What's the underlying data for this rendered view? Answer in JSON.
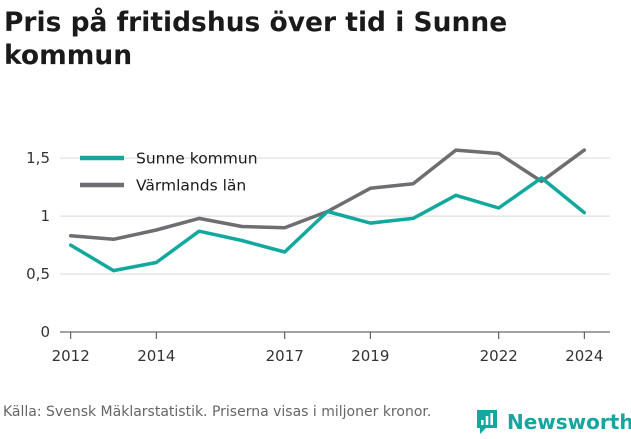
{
  "title": "Pris på fritidshus över tid i Sunne kommun",
  "source": "Källa: Svensk Mäklarstatistik. Priserna visas i miljoner kronor.",
  "brand": {
    "name": "Newsworthy",
    "icon": "newsworthy-logo-icon",
    "color": "#15a6a0"
  },
  "chart_data": {
    "type": "line",
    "title": "Pris på fritidshus över tid i Sunne kommun",
    "xlabel": "",
    "ylabel": "",
    "x": [
      2012,
      2013,
      2014,
      2015,
      2016,
      2017,
      2018,
      2019,
      2020,
      2021,
      2022,
      2023,
      2024
    ],
    "x_tick_values": [
      2012,
      2014,
      2017,
      2019,
      2022,
      2024
    ],
    "x_tick_labels": [
      "2012",
      "2014",
      "2017",
      "2019",
      "2022",
      "2024"
    ],
    "y_tick_values": [
      0,
      0.5,
      1,
      1.5
    ],
    "y_tick_labels": [
      "0",
      "0,5",
      "1",
      "1,5"
    ],
    "xlim": [
      2011.75,
      2024.6
    ],
    "ylim": [
      0,
      1.7
    ],
    "grid": true,
    "legend_position": "top-left",
    "series": [
      {
        "name": "Sunne kommun",
        "color": "#13a89e",
        "values": [
          0.75,
          0.53,
          0.6,
          0.87,
          0.79,
          0.69,
          1.04,
          0.94,
          0.98,
          1.18,
          1.07,
          1.33,
          1.03
        ]
      },
      {
        "name": "Värmlands län",
        "color": "#6d6d72",
        "values": [
          0.83,
          0.8,
          0.88,
          0.98,
          0.91,
          0.9,
          1.04,
          1.24,
          1.28,
          1.57,
          1.54,
          1.3,
          1.57
        ]
      }
    ]
  }
}
